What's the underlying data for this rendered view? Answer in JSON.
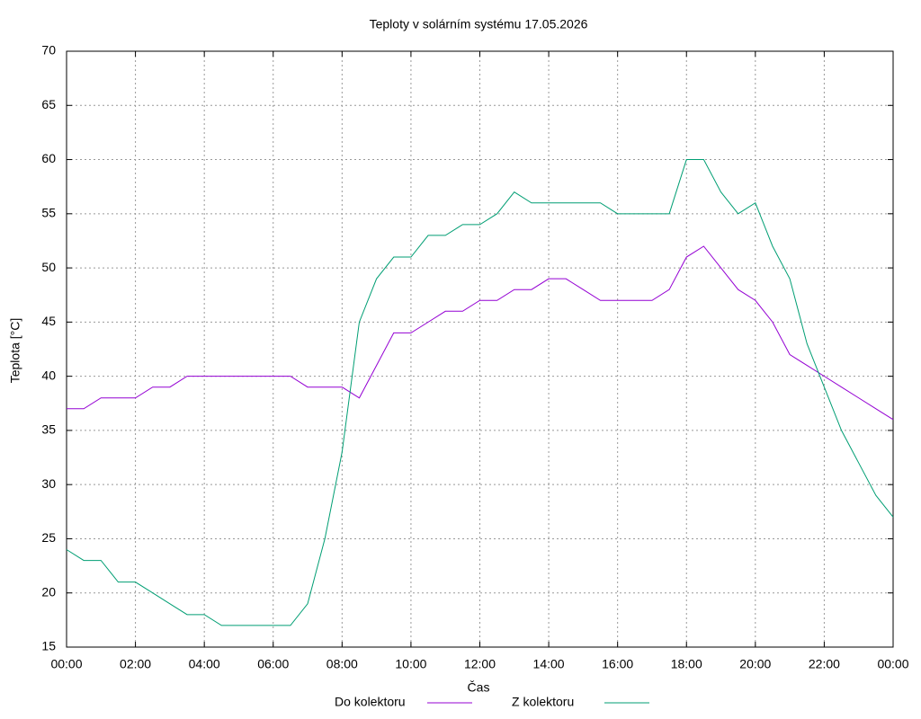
{
  "chart_data": {
    "type": "line",
    "title": "Teploty v solárním systému 17.05.2026",
    "x_label": "Čas",
    "y_label": "Teplota [°C]",
    "x": [
      0,
      0.5,
      1,
      1.5,
      2,
      2.5,
      3,
      3.5,
      4,
      4.5,
      5,
      5.5,
      6,
      6.5,
      7,
      7.5,
      8,
      8.5,
      9,
      9.5,
      10,
      10.5,
      11,
      11.5,
      12,
      12.5,
      13,
      13.5,
      14,
      14.5,
      15,
      15.5,
      16,
      16.5,
      17,
      17.5,
      18,
      18.5,
      19,
      19.5,
      20,
      20.5,
      21,
      21.5,
      22,
      22.5,
      23,
      23.5,
      24
    ],
    "series": [
      {
        "name": "Do kolektoru",
        "color": "#9400d3",
        "values": [
          37,
          37,
          38,
          38,
          38,
          39,
          39,
          40,
          40,
          40,
          40,
          40,
          40,
          40,
          39,
          39,
          39,
          38,
          41,
          44,
          44,
          45,
          46,
          46,
          47,
          47,
          48,
          48,
          49,
          49,
          48,
          47,
          47,
          47,
          47,
          48,
          51,
          52,
          50,
          48,
          47,
          45,
          42,
          41,
          40,
          39,
          38,
          37,
          36
        ]
      },
      {
        "name": "Z kolektoru",
        "color": "#009e73",
        "values": [
          24,
          23,
          23,
          21,
          21,
          20,
          19,
          18,
          18,
          17,
          17,
          17,
          17,
          17,
          19,
          25,
          33,
          45,
          49,
          51,
          51,
          53,
          53,
          54,
          54,
          55,
          57,
          56,
          56,
          56,
          56,
          56,
          55,
          55,
          55,
          55,
          60,
          60,
          57,
          55,
          56,
          52,
          49,
          43,
          39,
          35,
          32,
          29,
          27
        ]
      }
    ],
    "xlim": [
      0,
      24
    ],
    "xticks": [
      {
        "value": 0,
        "label": "00:00"
      },
      {
        "value": 2,
        "label": "02:00"
      },
      {
        "value": 4,
        "label": "04:00"
      },
      {
        "value": 6,
        "label": "06:00"
      },
      {
        "value": 8,
        "label": "08:00"
      },
      {
        "value": 10,
        "label": "10:00"
      },
      {
        "value": 12,
        "label": "12:00"
      },
      {
        "value": 14,
        "label": "14:00"
      },
      {
        "value": 16,
        "label": "16:00"
      },
      {
        "value": 18,
        "label": "18:00"
      },
      {
        "value": 20,
        "label": "20:00"
      },
      {
        "value": 22,
        "label": "22:00"
      },
      {
        "value": 24,
        "label": "00:00"
      }
    ],
    "ylim": [
      15,
      70
    ],
    "yticks": [
      15,
      20,
      25,
      30,
      35,
      40,
      45,
      50,
      55,
      60,
      65,
      70
    ],
    "grid": true
  }
}
